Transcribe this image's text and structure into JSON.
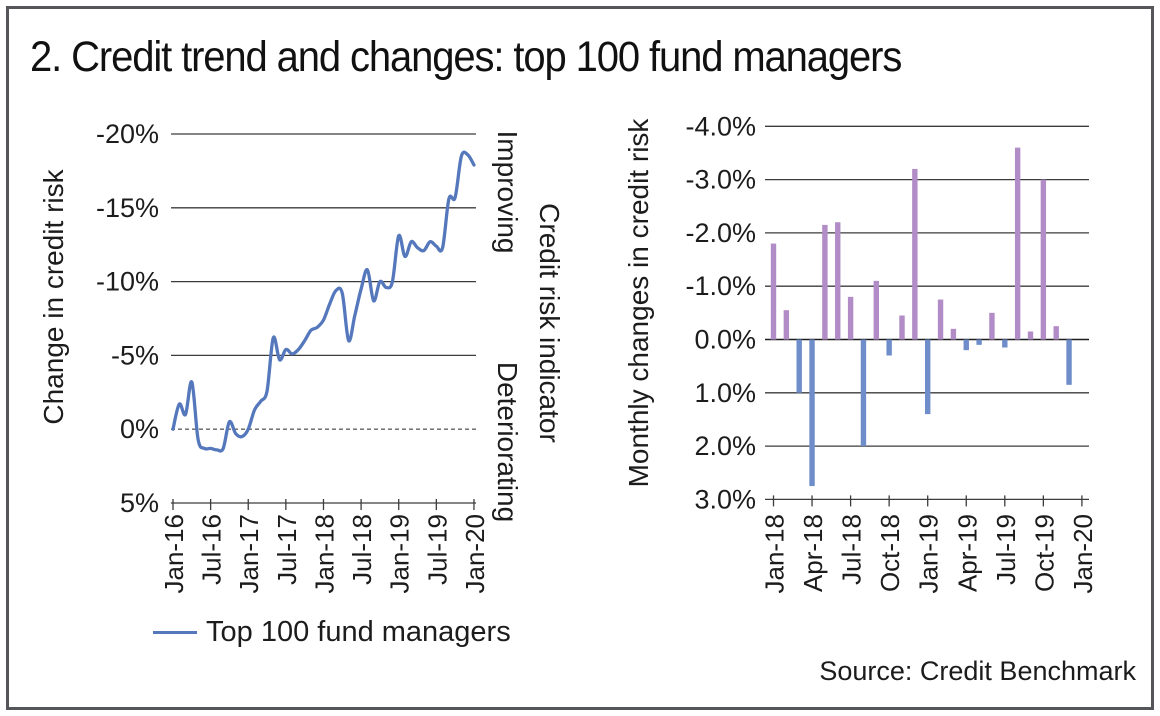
{
  "title": "2. Credit trend and changes: top 100 fund managers",
  "source": "Source: Credit Benchmark",
  "legend": {
    "label": "Top 100 fund managers"
  },
  "middle_labels": {
    "improving": "Improving",
    "indicator": "Credit risk indicator",
    "deteriorating": "Deteriorating"
  },
  "colors": {
    "line": "#5578bc",
    "bar_improving_purple": "#b18cc6",
    "bar_deteriorating_blue": "#6f8dc9",
    "grid": "#3c3c3c",
    "zero_line": "#1f1f1f",
    "zero_dashed": "#606060",
    "frame": "#54565a",
    "text": "#1c1c1c"
  },
  "chart_data": [
    {
      "type": "line",
      "name": "credit-trend-top-100-fund-managers",
      "ylabel": "Change in credit risk",
      "legend_entries": [
        "Top 100 fund managers"
      ],
      "y_axis_inverted": true,
      "ylim": [
        -20,
        5
      ],
      "y_ticks": [
        -20,
        -15,
        -10,
        -5,
        0,
        5
      ],
      "y_tick_labels": [
        "-20%",
        "-15%",
        "-10%",
        "-5%",
        "0%",
        "5%"
      ],
      "x_start": "Jan-16",
      "x_step": "1 month",
      "x_tick_labels": [
        "Jan-16",
        "Jul-16",
        "Jan-17",
        "Jul-17",
        "Jan-18",
        "Jul-18",
        "Jan-19",
        "Jul-19",
        "Jan-20"
      ],
      "x_tick_month_indices": [
        0,
        6,
        12,
        18,
        24,
        30,
        36,
        42,
        48
      ],
      "zero_line_dashed": true,
      "annotations": [
        "Improving",
        "Credit risk indicator",
        "Deteriorating"
      ],
      "values": [
        0.0,
        -1.7,
        -1.0,
        -3.2,
        0.7,
        1.3,
        1.3,
        1.4,
        1.3,
        -0.5,
        0.3,
        0.5,
        0.0,
        -1.3,
        -1.9,
        -2.6,
        -6.2,
        -4.7,
        -5.4,
        -5.1,
        -5.4,
        -6.0,
        -6.7,
        -6.9,
        -7.4,
        -8.5,
        -9.4,
        -9.2,
        -6.0,
        -7.7,
        -9.5,
        -10.8,
        -8.7,
        -10.0,
        -9.6,
        -10.0,
        -13.1,
        -11.7,
        -12.7,
        -12.3,
        -12.1,
        -12.7,
        -12.4,
        -12.3,
        -15.6,
        -15.7,
        -18.5,
        -18.6,
        -17.9
      ]
    },
    {
      "type": "bar",
      "name": "monthly-changes-in-credit-risk",
      "ylabel": "Monthly changes in credit risk",
      "y_axis_inverted": true,
      "ylim": [
        -4,
        3
      ],
      "y_ticks": [
        -4,
        -3,
        -2,
        -1,
        0,
        1,
        2,
        3
      ],
      "y_tick_labels": [
        "-4.0%",
        "-3.0%",
        "-2.0%",
        "-1.0%",
        "0.0%",
        "1.0%",
        "2.0%",
        "3.0%"
      ],
      "categories": [
        "Jan-18",
        "Feb-18",
        "Mar-18",
        "Apr-18",
        "May-18",
        "Jun-18",
        "Jul-18",
        "Aug-18",
        "Sep-18",
        "Oct-18",
        "Nov-18",
        "Dec-18",
        "Jan-19",
        "Feb-19",
        "Mar-19",
        "Apr-19",
        "May-19",
        "Jun-19",
        "Jul-19",
        "Aug-19",
        "Sep-19",
        "Oct-19",
        "Nov-19",
        "Dec-19",
        "Jan-20"
      ],
      "x_tick_labels": [
        "Jan-18",
        "Apr-18",
        "Jul-18",
        "Oct-18",
        "Jan-19",
        "Apr-19",
        "Jul-19",
        "Oct-19",
        "Jan-20"
      ],
      "x_tick_month_indices": [
        0,
        3,
        6,
        9,
        12,
        15,
        18,
        21,
        24
      ],
      "color_rule": "negative values (improving) purple bars point up; positive values (deteriorating) blue bars point down",
      "values": [
        -1.8,
        -0.55,
        1.0,
        2.75,
        -2.15,
        -2.2,
        -0.8,
        2.0,
        -1.1,
        0.3,
        -0.45,
        -3.2,
        1.4,
        -0.75,
        -0.2,
        0.2,
        0.1,
        -0.5,
        0.15,
        -3.6,
        -0.15,
        -3.0,
        -0.25,
        0.85,
        0.0
      ]
    }
  ]
}
